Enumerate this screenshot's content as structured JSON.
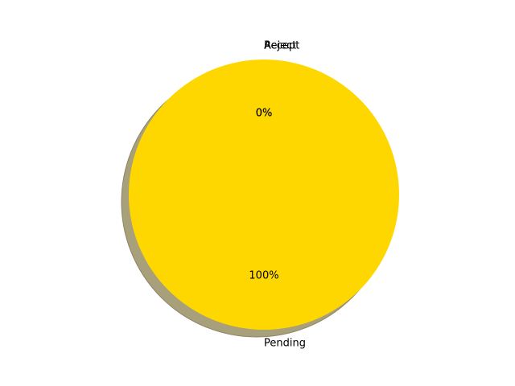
{
  "chart_data": {
    "type": "pie",
    "categories": [
      "Accept",
      "Reject",
      "Pending"
    ],
    "values": [
      0,
      0,
      100
    ],
    "percent_labels": [
      "0%",
      "0%",
      "100%"
    ],
    "colors": [
      "#66b3ff",
      "#ff9999",
      "#ffd700"
    ],
    "shadow": true,
    "title": "",
    "legend": "none"
  }
}
